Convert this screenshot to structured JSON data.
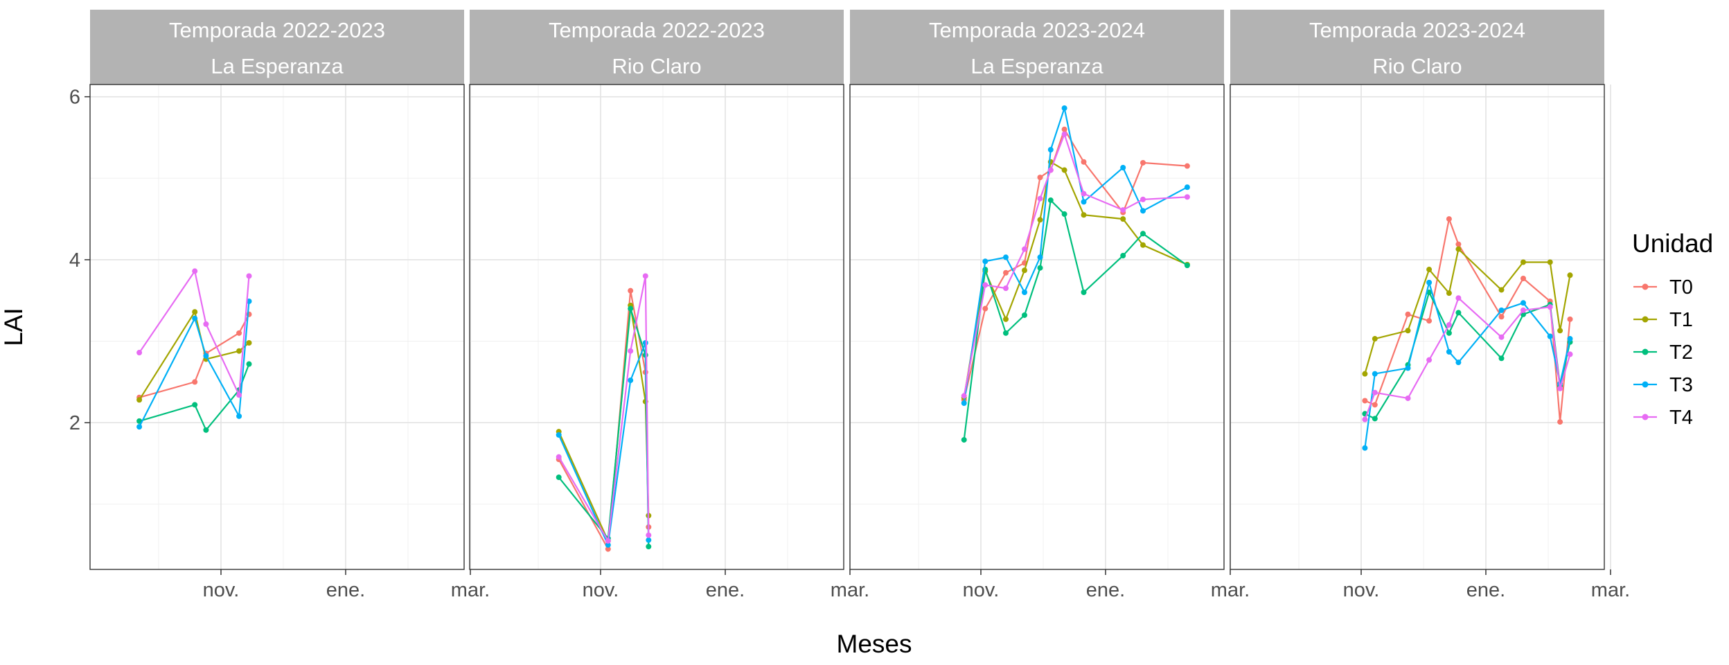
{
  "chart_data": {
    "type": "line",
    "xlabel": "Meses",
    "ylabel": "LAI",
    "ylim": [
      0.2,
      6.15
    ],
    "y_ticks": [
      2,
      4,
      6
    ],
    "y_tick_labels": [
      "2",
      "4",
      "6"
    ],
    "x_ticks": [
      "nov.",
      "ene.",
      "mar."
    ],
    "legend": {
      "title": "Unidad",
      "position": "right",
      "entries": [
        "T0",
        "T1",
        "T2",
        "T3",
        "T4"
      ]
    },
    "grid": true,
    "colors": {
      "T0": "#F8766D",
      "T1": "#A3A500",
      "T2": "#00BF7D",
      "T3": "#00B0F6",
      "T4": "#E76BF3"
    },
    "panels": [
      {
        "strip_top": "Temporada 2022-2023",
        "strip_bottom": "La Esperanza",
        "x_ticks": [
          "nov.",
          "ene.",
          "mar."
        ],
        "series": [
          {
            "name": "T0",
            "x": [
              -1.31,
              -0.42,
              -0.24,
              0.29,
              0.45
            ],
            "y": [
              2.31,
              2.5,
              2.85,
              3.1,
              3.33
            ]
          },
          {
            "name": "T1",
            "x": [
              -1.31,
              -0.42,
              -0.24,
              0.29,
              0.45
            ],
            "y": [
              2.28,
              3.36,
              2.78,
              2.88,
              2.98
            ]
          },
          {
            "name": "T2",
            "x": [
              -1.31,
              -0.42,
              -0.24,
              0.29,
              0.45
            ],
            "y": [
              2.02,
              2.22,
              1.91,
              2.4,
              2.72
            ]
          },
          {
            "name": "T3",
            "x": [
              -1.31,
              -0.42,
              -0.24,
              0.29,
              0.45
            ],
            "y": [
              1.95,
              3.28,
              2.82,
              2.08,
              3.49
            ]
          },
          {
            "name": "T4",
            "x": [
              -1.31,
              -0.42,
              -0.24,
              0.29,
              0.45
            ],
            "y": [
              2.86,
              3.86,
              3.21,
              2.34,
              3.8
            ]
          }
        ]
      },
      {
        "strip_top": "Temporada 2022-2023",
        "strip_bottom": "Rio Claro",
        "x_ticks": [
          "nov.",
          "ene.",
          "mar."
        ],
        "series": [
          {
            "name": "T0",
            "x": [
              -0.67,
              0.12,
              0.48,
              0.72,
              0.77
            ],
            "y": [
              1.55,
              0.45,
              3.62,
              2.62,
              0.72
            ]
          },
          {
            "name": "T1",
            "x": [
              -0.67,
              0.12,
              0.48,
              0.72,
              0.77
            ],
            "y": [
              1.89,
              0.55,
              3.44,
              2.26,
              0.86
            ]
          },
          {
            "name": "T2",
            "x": [
              -0.67,
              0.12,
              0.48,
              0.72,
              0.77
            ],
            "y": [
              1.33,
              0.58,
              3.4,
              2.83,
              0.48
            ]
          },
          {
            "name": "T3",
            "x": [
              -0.67,
              0.12,
              0.48,
              0.72,
              0.77
            ],
            "y": [
              1.85,
              0.5,
              2.52,
              2.98,
              0.56
            ]
          },
          {
            "name": "T4",
            "x": [
              -0.67,
              0.12,
              0.48,
              0.72,
              0.77
            ],
            "y": [
              1.58,
              0.55,
              2.88,
              3.8,
              0.62
            ]
          }
        ]
      },
      {
        "strip_top": "Temporada 2023-2024",
        "strip_bottom": "La Esperanza",
        "x_ticks": [
          "nov.",
          "ene.",
          "mar."
        ],
        "series": [
          {
            "name": "T0",
            "x": [
              -0.27,
              0.07,
              0.4,
              0.7,
              0.95,
              1.12,
              1.34,
              1.65,
              2.28,
              2.6,
              3.31
            ],
            "y": [
              2.28,
              3.4,
              3.84,
              3.96,
              5.01,
              5.1,
              5.6,
              5.2,
              4.58,
              5.19,
              5.15
            ]
          },
          {
            "name": "T1",
            "x": [
              -0.27,
              0.07,
              0.4,
              0.7,
              0.95,
              1.12,
              1.34,
              1.65,
              2.28,
              2.6,
              3.31
            ],
            "y": [
              2.31,
              3.86,
              3.27,
              3.87,
              4.49,
              5.2,
              5.1,
              4.55,
              4.5,
              4.18,
              3.94
            ]
          },
          {
            "name": "T2",
            "x": [
              -0.27,
              0.07,
              0.4,
              0.7,
              0.95,
              1.12,
              1.34,
              1.65,
              2.28,
              2.6,
              3.31
            ],
            "y": [
              1.79,
              3.88,
              3.1,
              3.32,
              3.9,
              4.73,
              4.56,
              3.6,
              4.05,
              4.32,
              3.93
            ]
          },
          {
            "name": "T3",
            "x": [
              -0.27,
              0.07,
              0.4,
              0.7,
              0.95,
              1.12,
              1.34,
              1.65,
              2.28,
              2.6,
              3.31
            ],
            "y": [
              2.24,
              3.98,
              4.03,
              3.6,
              4.03,
              5.35,
              5.86,
              4.71,
              5.13,
              4.6,
              4.89
            ]
          },
          {
            "name": "T4",
            "x": [
              -0.27,
              0.07,
              0.4,
              0.7,
              0.95,
              1.12,
              1.34,
              1.65,
              2.28,
              2.6,
              3.31
            ],
            "y": [
              2.33,
              3.69,
              3.65,
              4.13,
              4.75,
              5.1,
              5.54,
              4.81,
              4.61,
              4.74,
              4.77
            ]
          }
        ]
      },
      {
        "strip_top": "Temporada 2023-2024",
        "strip_bottom": "Rio Claro",
        "x_ticks": [
          "nov.",
          "ene.",
          "mar."
        ],
        "series": [
          {
            "name": "T0",
            "x": [
              0.06,
              0.22,
              0.75,
              1.09,
              1.41,
              1.56,
              2.25,
              2.6,
              3.03,
              3.19,
              3.35
            ],
            "y": [
              2.27,
              2.22,
              3.33,
              3.25,
              4.5,
              4.19,
              3.3,
              3.77,
              3.49,
              2.01,
              3.27
            ]
          },
          {
            "name": "T1",
            "x": [
              0.06,
              0.22,
              0.75,
              1.09,
              1.41,
              1.56,
              2.25,
              2.6,
              3.03,
              3.19,
              3.35
            ],
            "y": [
              2.6,
              3.03,
              3.13,
              3.88,
              3.59,
              4.13,
              3.63,
              3.97,
              3.97,
              3.13,
              3.81
            ]
          },
          {
            "name": "T2",
            "x": [
              0.06,
              0.22,
              0.75,
              1.09,
              1.41,
              1.56,
              2.25,
              2.6,
              3.03,
              3.19,
              3.35
            ],
            "y": [
              2.11,
              2.05,
              2.71,
              3.6,
              3.1,
              3.35,
              2.79,
              3.33,
              3.45,
              2.45,
              2.99
            ]
          },
          {
            "name": "T3",
            "x": [
              0.06,
              0.22,
              0.75,
              1.09,
              1.41,
              1.56,
              2.25,
              2.6,
              3.03,
              3.19,
              3.35
            ],
            "y": [
              1.69,
              2.6,
              2.67,
              3.72,
              2.87,
              2.74,
              3.38,
              3.47,
              3.06,
              2.48,
              3.03
            ]
          },
          {
            "name": "T4",
            "x": [
              0.06,
              0.22,
              0.75,
              1.09,
              1.41,
              1.56,
              2.25,
              2.6,
              3.03,
              3.19,
              3.35
            ],
            "y": [
              2.04,
              2.37,
              2.3,
              2.77,
              3.2,
              3.53,
              3.05,
              3.38,
              3.42,
              2.42,
              2.84
            ]
          }
        ]
      }
    ]
  }
}
